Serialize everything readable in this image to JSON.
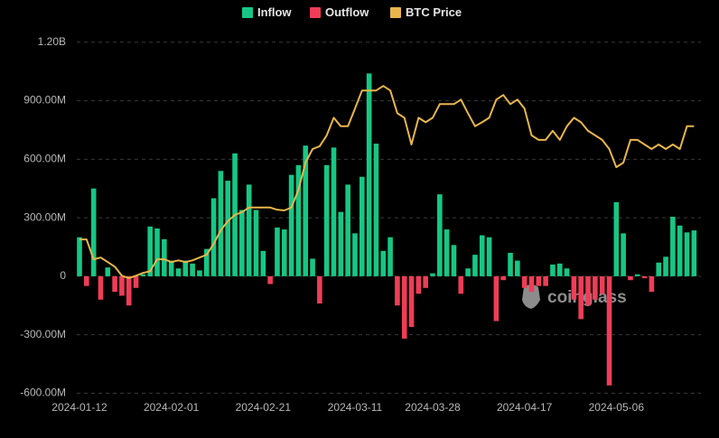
{
  "chart_data": {
    "type": "bar",
    "categories": [
      "2024-01-12",
      null,
      null,
      null,
      null,
      null,
      null,
      null,
      null,
      null,
      null,
      null,
      null,
      "2024-02-01",
      null,
      null,
      null,
      null,
      null,
      null,
      null,
      null,
      null,
      null,
      null,
      null,
      "2024-02-21",
      null,
      null,
      null,
      null,
      null,
      null,
      null,
      null,
      null,
      null,
      null,
      null,
      "2024-03-11",
      null,
      null,
      null,
      null,
      null,
      null,
      null,
      null,
      null,
      null,
      "2024-03-28",
      null,
      null,
      null,
      null,
      null,
      null,
      null,
      null,
      null,
      null,
      null,
      null,
      "2024-04-17",
      null,
      null,
      null,
      null,
      null,
      null,
      null,
      null,
      null,
      null,
      null,
      null,
      "2024-05-06",
      null,
      null,
      null,
      null,
      null,
      null,
      null,
      null,
      null,
      null,
      null
    ],
    "series": [
      {
        "name": "Inflow",
        "color": "#16c784",
        "values": [
          200000000.0,
          null,
          450000000.0,
          null,
          45000000.0,
          null,
          null,
          null,
          null,
          10000000.0,
          255000000.0,
          245000000.0,
          190000000.0,
          80000000.0,
          40000000.0,
          80000000.0,
          65000000.0,
          30000000.0,
          140000000.0,
          400000000.0,
          540000000.0,
          490000000.0,
          630000000.0,
          340000000.0,
          470000000.0,
          340000000.0,
          130000000.0,
          null,
          250000000.0,
          240000000.0,
          520000000.0,
          570000000.0,
          670000000.0,
          90000000.0,
          null,
          570000000.0,
          660000000.0,
          330000000.0,
          470000000.0,
          220000000.0,
          510000000.0,
          1040000000.0,
          680000000.0,
          130000000.0,
          200000000.0,
          null,
          null,
          null,
          null,
          null,
          15000000.0,
          420000000.0,
          240000000.0,
          160000000.0,
          null,
          40000000.0,
          110000000.0,
          210000000.0,
          200000000.0,
          null,
          null,
          120000000.0,
          80000000.0,
          null,
          null,
          null,
          null,
          60000000.0,
          65000000.0,
          40000000.0,
          null,
          null,
          null,
          null,
          null,
          null,
          380000000.0,
          220000000.0,
          null,
          10000000.0,
          null,
          null,
          70000000.0,
          100000000.0,
          305000000.0,
          260000000.0,
          225000000.0,
          235000000.0
        ]
      },
      {
        "name": "Outflow",
        "color": "#ef3d57",
        "values": [
          null,
          -50000000.0,
          null,
          -120000000.0,
          null,
          -80000000.0,
          -100000000.0,
          -150000000.0,
          -60000000.0,
          null,
          null,
          null,
          null,
          null,
          null,
          null,
          null,
          null,
          null,
          null,
          null,
          null,
          null,
          null,
          null,
          null,
          null,
          -40000000.0,
          null,
          null,
          null,
          null,
          null,
          null,
          -140000000.0,
          null,
          null,
          null,
          null,
          null,
          null,
          null,
          null,
          null,
          null,
          -150000000.0,
          -320000000.0,
          -260000000.0,
          -90000000.0,
          -60000000.0,
          null,
          null,
          null,
          null,
          -90000000.0,
          null,
          null,
          null,
          null,
          -230000000.0,
          -20000000.0,
          null,
          null,
          -60000000.0,
          -80000000.0,
          -50000000.0,
          -50000000.0,
          null,
          null,
          null,
          -120000000.0,
          -220000000.0,
          -150000000.0,
          -120000000.0,
          -90000000.0,
          -560000000.0,
          null,
          null,
          -20000000.0,
          null,
          -10000000.0,
          -80000000.0,
          null,
          null,
          null,
          null,
          null,
          null
        ]
      },
      {
        "name": "BTC Price",
        "color": "#e8b64c",
        "axis": "y2",
        "values": [
          46000,
          46000,
          42500,
          42800,
          42000,
          41200,
          39600,
          39200,
          39600,
          40100,
          40400,
          42500,
          42500,
          42000,
          42300,
          42000,
          42300,
          42800,
          43300,
          45200,
          47600,
          49200,
          50300,
          50800,
          51600,
          51600,
          51600,
          51600,
          51200,
          51100,
          51600,
          54700,
          59500,
          61900,
          62400,
          64300,
          67400,
          65900,
          65900,
          69000,
          72200,
          72200,
          72200,
          73000,
          72200,
          68200,
          67400,
          62700,
          67400,
          66600,
          67400,
          69800,
          69800,
          69800,
          70600,
          68200,
          65900,
          66600,
          67400,
          70600,
          71400,
          69800,
          70600,
          69000,
          64300,
          63500,
          63500,
          65100,
          63500,
          65900,
          67400,
          66600,
          65100,
          64300,
          63500,
          61900,
          58700,
          59500,
          63500,
          63500,
          62700,
          61900,
          62700,
          61900,
          62700,
          61900,
          65900,
          65900
        ]
      }
    ],
    "ylim": [
      -700000000.0,
      1250000000.0
    ],
    "yticks": [
      {
        "value": -600000000,
        "label": "-600.00M"
      },
      {
        "value": -300000000,
        "label": "-300.00M"
      },
      0,
      {
        "value": 300000000,
        "label": "300.00M"
      },
      {
        "value": 600000000,
        "label": "600.00M"
      },
      {
        "value": 900000000,
        "label": "900.00M"
      },
      {
        "value": 1200000000,
        "label": "1.20B"
      }
    ],
    "y2lim": [
      15500,
      82400
    ],
    "grid": true,
    "legend": "top",
    "watermark": "coinglass"
  }
}
